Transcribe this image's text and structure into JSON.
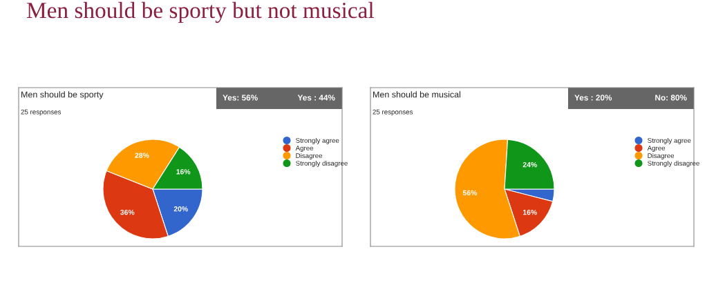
{
  "chart_data": [
    {
      "type": "pie",
      "title": "Men should be sporty",
      "subtitle": "25 responses",
      "annotations": [
        "Men should be sporty but not musical",
        "Yes: 56%",
        "Yes : 44%"
      ],
      "categories": [
        "Strongly agree",
        "Agree",
        "Disagree",
        "Strongly disagree"
      ],
      "values": [
        20,
        36,
        28,
        16
      ],
      "colors": [
        "#3366cc",
        "#dc3912",
        "#ff9900",
        "#109618"
      ],
      "value_labels": [
        "20%",
        "36%",
        "28%",
        "16%"
      ],
      "legend": "right"
    },
    {
      "type": "pie",
      "title": "Men should be musical",
      "subtitle": "25 responses",
      "annotations": [
        "Yes : 20%",
        "No: 80%"
      ],
      "categories": [
        "Strongly agree",
        "Agree",
        "Disagree",
        "Strongly disagree"
      ],
      "values": [
        4,
        16,
        56,
        24
      ],
      "colors": [
        "#3366cc",
        "#dc3912",
        "#ff9900",
        "#109618"
      ],
      "value_labels": [
        null,
        "16%",
        "56%",
        "24%"
      ],
      "legend": "right"
    }
  ]
}
